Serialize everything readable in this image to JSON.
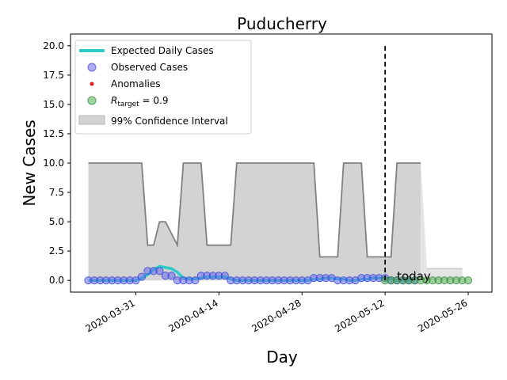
{
  "chart_data": {
    "type": "line",
    "title": "Puducherry",
    "xlabel": "Day",
    "ylabel": "New Cases",
    "x_start": "2020-03-23",
    "x_range": [
      "2020-03-20",
      "2020-05-30"
    ],
    "ylim": [
      -1,
      21
    ],
    "x_ticks": [
      "2020-03-31",
      "2020-04-14",
      "2020-04-28",
      "2020-05-12",
      "2020-05-26"
    ],
    "y_ticks": [
      "0.0",
      "2.5",
      "5.0",
      "7.5",
      "10.0",
      "12.5",
      "15.0",
      "17.5",
      "20.0"
    ],
    "today": {
      "date": "2020-05-12",
      "label": "today",
      "line_top": 20
    },
    "legend": {
      "placement": "upper-left",
      "entries": [
        {
          "label": "Expected Daily Cases",
          "kind": "line",
          "color": "#2ecbc7"
        },
        {
          "label": "Observed Cases",
          "kind": "marker",
          "color": "#7777ee"
        },
        {
          "label": "Anomalies",
          "kind": "dot",
          "color": "#e41a1c"
        },
        {
          "label": "R_target = 0.9",
          "kind": "marker",
          "color": "#4caf50",
          "math": {
            "prefix": "R",
            "sub": "target",
            "suffix": " = 0.9"
          }
        },
        {
          "label": "99% Confidence Interval",
          "kind": "patch",
          "color": "#d3d3d3"
        }
      ]
    },
    "series": [
      {
        "name": "Observed Cases",
        "color": "#3b5bdb",
        "values": [
          0,
          0,
          0,
          0,
          0,
          0,
          0,
          0,
          0,
          0.3,
          0.8,
          0.8,
          0.8,
          0.4,
          0.4,
          0,
          0,
          0,
          0,
          0.4,
          0.4,
          0.4,
          0.4,
          0.4,
          0,
          0,
          0,
          0,
          0,
          0,
          0,
          0,
          0,
          0,
          0,
          0,
          0,
          0,
          0.2,
          0.2,
          0.2,
          0.2,
          0,
          0,
          0,
          0,
          0.2,
          0.2,
          0.2,
          0.2,
          0.2,
          0,
          0,
          0,
          0,
          0
        ]
      },
      {
        "name": "Expected Daily Cases",
        "color": "#2ecbc7",
        "values": [
          0,
          0,
          0,
          0,
          0,
          0,
          0,
          0,
          0,
          0.2,
          0.5,
          0.9,
          1.2,
          1.1,
          1.0,
          0.7,
          0.2,
          0.1,
          0.1,
          0.2,
          0.3,
          0.3,
          0.3,
          0.3,
          0.1,
          0,
          0,
          0,
          0,
          0,
          0,
          0,
          0,
          0,
          0,
          0,
          0,
          0,
          0.1,
          0.1,
          0.2,
          0.2,
          0.1,
          0.1,
          0,
          0,
          0.1,
          0.1,
          0.2,
          0.2,
          0.2,
          0.1,
          0,
          0,
          0,
          0
        ]
      },
      {
        "name": "99% Confidence Interval upper",
        "color": "#808080",
        "values": [
          10,
          10,
          10,
          10,
          10,
          10,
          10,
          10,
          10,
          10,
          3,
          3,
          5,
          5,
          4,
          3,
          10,
          10,
          10,
          10,
          3,
          3,
          3,
          3,
          3,
          10,
          10,
          10,
          10,
          10,
          10,
          10,
          10,
          10,
          10,
          10,
          10,
          10,
          10,
          2,
          2,
          2,
          2,
          10,
          10,
          10,
          10,
          2,
          2,
          2,
          2,
          2,
          10,
          10,
          10,
          10,
          10
        ]
      },
      {
        "name": "R_target = 0.9",
        "color": "#4caf50",
        "values": [
          0,
          0,
          0,
          0,
          0,
          0,
          0,
          0,
          0,
          0,
          0,
          0,
          0,
          0,
          0
        ]
      }
    ],
    "forecast_band": {
      "start_upper": 10,
      "after": 1,
      "end_date": "2020-05-25"
    }
  }
}
